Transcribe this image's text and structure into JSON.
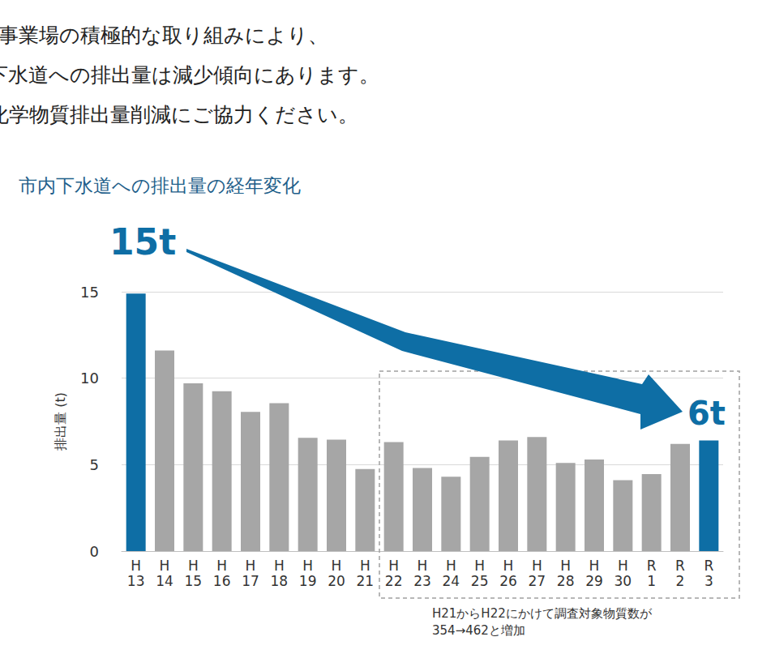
{
  "chart_data": {
    "type": "bar",
    "header": [
      "多くの事業場の積極的な取り組みにより、",
      "化学物質の下水道への排出量は減少傾向にあります。",
      "今後も、化学物質排出量削減にご協力ください。"
    ],
    "title": "市内下水道への排出量の経年変化",
    "ylabel": "排出量 (t)",
    "categories": [
      "H\n13",
      "H\n14",
      "H\n15",
      "H\n16",
      "H\n17",
      "H\n18",
      "H\n19",
      "H\n20",
      "H\n21",
      "H\n22",
      "H\n23",
      "H\n24",
      "H\n25",
      "H\n26",
      "H\n27",
      "H\n28",
      "H\n29",
      "H\n30",
      "R\n1",
      "R\n2",
      "R\n3"
    ],
    "values": [
      14.9,
      11.6,
      9.7,
      9.25,
      8.05,
      8.55,
      6.55,
      6.45,
      4.75,
      6.3,
      4.8,
      4.3,
      5.45,
      6.4,
      6.6,
      5.1,
      5.3,
      4.1,
      4.45,
      6.2,
      6.4
    ],
    "colors": [
      "#0e6ea5",
      "#a6a6a6",
      "#a6a6a6",
      "#a6a6a6",
      "#a6a6a6",
      "#a6a6a6",
      "#a6a6a6",
      "#a6a6a6",
      "#a6a6a6",
      "#a6a6a6",
      "#a6a6a6",
      "#a6a6a6",
      "#a6a6a6",
      "#a6a6a6",
      "#a6a6a6",
      "#a6a6a6",
      "#a6a6a6",
      "#a6a6a6",
      "#a6a6a6",
      "#a6a6a6",
      "#0e6ea5"
    ],
    "ylim": [
      0,
      15
    ],
    "yticks": [
      0,
      5,
      10,
      15
    ],
    "grid": true,
    "annotations": [
      {
        "text": "15t"
      },
      {
        "text": "6t"
      },
      {
        "text": "H21からH22にかけて調査対象物質数が\n354→462と増加"
      }
    ]
  }
}
